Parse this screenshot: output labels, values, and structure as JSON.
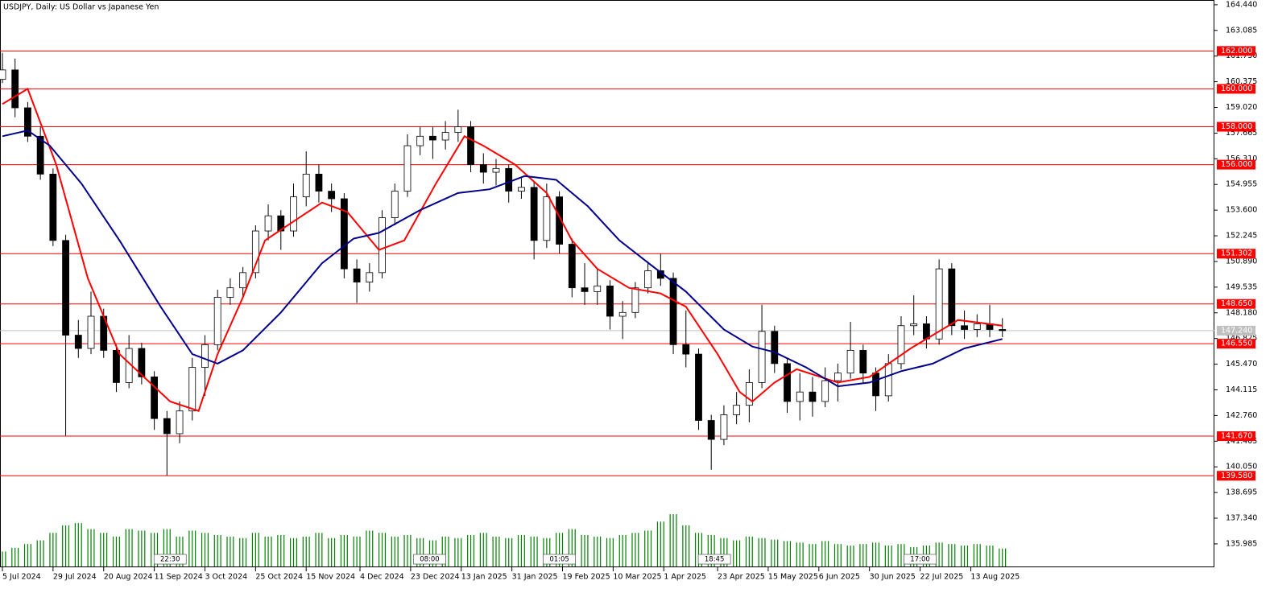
{
  "chart_data": {
    "type": "candlestick",
    "title": "USDJPY, Daily:  US Dollar vs Japanese Yen",
    "xlim": [
      -0.76,
      383
    ],
    "ylim": [
      134.75,
      164.69
    ],
    "yticks": [
      {
        "value": 164.44,
        "label": "164.440"
      },
      {
        "value": 163.085,
        "label": "163.085"
      },
      {
        "value": 161.73,
        "label": "161.730"
      },
      {
        "value": 160.375,
        "label": "160.375"
      },
      {
        "value": 159.02,
        "label": "159.020"
      },
      {
        "value": 157.665,
        "label": "157.665"
      },
      {
        "value": 156.31,
        "label": "156.310"
      },
      {
        "value": 154.955,
        "label": "154.955"
      },
      {
        "value": 153.6,
        "label": "153.600"
      },
      {
        "value": 152.245,
        "label": "152.245"
      },
      {
        "value": 150.89,
        "label": "150.890"
      },
      {
        "value": 149.535,
        "label": "149.535"
      },
      {
        "value": 148.18,
        "label": "148.180"
      },
      {
        "value": 146.825,
        "label": "146.825"
      },
      {
        "value": 145.47,
        "label": "145.470"
      },
      {
        "value": 144.115,
        "label": "144.115"
      },
      {
        "value": 142.76,
        "label": "142.760"
      },
      {
        "value": 141.405,
        "label": "141.405"
      },
      {
        "value": 140.05,
        "label": "140.050"
      },
      {
        "value": 138.695,
        "label": "138.695"
      },
      {
        "value": 137.34,
        "label": "137.340"
      },
      {
        "value": 135.985,
        "label": "135.985"
      }
    ],
    "xticks": [
      {
        "value": 0,
        "label": "5 Jul 2024"
      },
      {
        "value": 16,
        "label": "29 Jul 2024"
      },
      {
        "value": 32,
        "label": "20 Aug 2024"
      },
      {
        "value": 48,
        "label": "11 Sep 2024"
      },
      {
        "value": 64,
        "label": "3 Oct 2024"
      },
      {
        "value": 80,
        "label": "25 Oct 2024"
      },
      {
        "value": 96,
        "label": "15 Nov 2024"
      },
      {
        "value": 113,
        "label": "4 Dec 2024"
      },
      {
        "value": 129,
        "label": "23 Dec 2024"
      },
      {
        "value": 145,
        "label": "13 Jan 2025"
      },
      {
        "value": 161,
        "label": "31 Jan 2025"
      },
      {
        "value": 177,
        "label": "19 Feb 2025"
      },
      {
        "value": 193,
        "label": "10 Mar 2025"
      },
      {
        "value": 209,
        "label": "1 Apr 2025"
      },
      {
        "value": 226,
        "label": "23 Apr 2025"
      },
      {
        "value": 242,
        "label": "15 May 2025"
      },
      {
        "value": 258,
        "label": "6 Jun 2025"
      },
      {
        "value": 274,
        "label": "30 Jun 2025"
      },
      {
        "value": 290,
        "label": "22 Jul 2025"
      },
      {
        "value": 306,
        "label": "13 Aug 2025"
      }
    ],
    "x": [
      0,
      4,
      8,
      12,
      16,
      20,
      24,
      28,
      32,
      36,
      40,
      44,
      48,
      52,
      56,
      60,
      64,
      68,
      72,
      76,
      80,
      84,
      88,
      92,
      96,
      100,
      104,
      108,
      112,
      116,
      120,
      124,
      128,
      132,
      136,
      140,
      144,
      148,
      152,
      156,
      160,
      164,
      168,
      172,
      176,
      180,
      184,
      188,
      192,
      196,
      200,
      204,
      208,
      212,
      216,
      220,
      224,
      228,
      232,
      236,
      240,
      244,
      248,
      252,
      256,
      260,
      264,
      268,
      272,
      276,
      280,
      284,
      288,
      292,
      296,
      300,
      304,
      308,
      312,
      316
    ],
    "open": [
      160.5,
      161.0,
      159.0,
      157.5,
      155.5,
      152.0,
      147.0,
      146.3,
      148.0,
      146.2,
      144.5,
      146.3,
      144.8,
      142.6,
      141.8,
      143.0,
      145.3,
      146.5,
      149.0,
      149.5,
      150.3,
      152.5,
      153.3,
      152.5,
      154.3,
      155.5,
      154.6,
      154.2,
      150.5,
      149.8,
      150.3,
      153.2,
      154.6,
      157.0,
      157.5,
      157.3,
      157.7,
      158.0,
      156.0,
      155.6,
      155.8,
      154.6,
      154.8,
      152.0,
      154.3,
      151.8,
      149.5,
      149.3,
      149.6,
      148.0,
      148.2,
      149.5,
      150.4,
      150.0,
      146.5,
      146.0,
      142.5,
      141.5,
      142.8,
      143.3,
      144.5,
      147.2,
      145.5,
      143.5,
      144.0,
      143.5,
      144.6,
      145.0,
      146.2,
      145.0,
      143.8,
      145.5,
      147.5,
      147.6,
      146.8,
      150.5,
      147.5,
      147.3,
      147.6,
      147.3
    ],
    "high": [
      161.9,
      161.6,
      159.3,
      158.0,
      155.8,
      152.3,
      147.8,
      149.3,
      148.4,
      146.5,
      147.0,
      146.6,
      145.1,
      143.0,
      143.5,
      145.8,
      147.0,
      149.4,
      150.0,
      150.6,
      152.8,
      153.9,
      153.6,
      155.0,
      156.7,
      156.0,
      155.0,
      154.5,
      151.0,
      150.8,
      153.6,
      155.0,
      157.6,
      158.0,
      158.0,
      158.3,
      158.9,
      158.3,
      156.6,
      156.3,
      156.0,
      155.3,
      155.1,
      155.0,
      154.6,
      152.1,
      150.8,
      150.5,
      149.9,
      148.8,
      149.8,
      150.9,
      151.3,
      150.3,
      148.3,
      146.3,
      142.8,
      143.3,
      144.0,
      145.2,
      148.6,
      147.5,
      145.8,
      145.0,
      144.8,
      145.3,
      145.5,
      147.7,
      146.5,
      145.3,
      146.0,
      148.0,
      149.1,
      148.0,
      151.0,
      150.8,
      148.3,
      148.1,
      148.6,
      147.9
    ],
    "low": [
      160.3,
      158.5,
      157.2,
      155.2,
      151.7,
      141.7,
      145.8,
      146.0,
      145.8,
      144.0,
      144.2,
      144.4,
      142.0,
      139.6,
      141.3,
      142.5,
      143.8,
      146.2,
      148.6,
      149.0,
      150.0,
      152.0,
      151.5,
      152.2,
      153.8,
      154.0,
      153.5,
      150.0,
      148.7,
      149.3,
      150.0,
      152.8,
      154.3,
      156.5,
      156.3,
      156.8,
      157.2,
      155.6,
      155.0,
      154.9,
      154.0,
      154.2,
      151.0,
      151.6,
      151.3,
      149.0,
      148.6,
      148.6,
      147.3,
      146.8,
      147.9,
      149.2,
      149.6,
      146.0,
      145.3,
      142.0,
      139.9,
      141.2,
      142.3,
      142.4,
      144.2,
      145.0,
      142.9,
      142.5,
      142.7,
      143.2,
      143.5,
      144.7,
      144.5,
      143.0,
      143.5,
      145.2,
      147.0,
      146.3,
      146.5,
      147.0,
      146.8,
      146.9,
      146.9,
      146.9
    ],
    "close": [
      161.0,
      159.0,
      157.5,
      155.5,
      152.0,
      147.0,
      146.3,
      148.0,
      146.2,
      144.5,
      146.3,
      144.8,
      142.6,
      141.8,
      143.0,
      145.3,
      146.5,
      149.0,
      149.5,
      150.3,
      152.5,
      153.3,
      152.5,
      154.3,
      155.5,
      154.6,
      154.2,
      150.5,
      149.8,
      150.3,
      153.2,
      154.6,
      157.0,
      157.5,
      157.3,
      157.7,
      158.0,
      156.0,
      155.6,
      155.8,
      154.6,
      154.8,
      152.0,
      154.3,
      151.8,
      149.5,
      149.3,
      149.6,
      148.0,
      148.2,
      149.5,
      150.4,
      150.0,
      146.5,
      146.0,
      142.5,
      141.5,
      142.8,
      143.3,
      144.5,
      147.2,
      145.5,
      143.5,
      144.0,
      143.5,
      144.6,
      145.0,
      146.2,
      145.0,
      143.8,
      145.5,
      147.5,
      147.6,
      146.8,
      150.5,
      147.5,
      147.3,
      147.6,
      147.3,
      147.24
    ],
    "volume": [
      20,
      25,
      30,
      35,
      45,
      55,
      58,
      50,
      45,
      40,
      50,
      48,
      45,
      50,
      40,
      48,
      45,
      42,
      40,
      38,
      45,
      40,
      42,
      38,
      40,
      45,
      38,
      42,
      40,
      48,
      45,
      40,
      42,
      38,
      35,
      40,
      38,
      42,
      45,
      40,
      38,
      42,
      40,
      38,
      45,
      50,
      42,
      40,
      38,
      42,
      45,
      48,
      60,
      70,
      55,
      45,
      42,
      38,
      35,
      40,
      38,
      36,
      34,
      32,
      30,
      34,
      30,
      28,
      30,
      32,
      28,
      30,
      26,
      28,
      32,
      30,
      28,
      30,
      28,
      24
    ],
    "volume_color": "#008000",
    "moving_averages": [
      {
        "color": "#ff0000",
        "x": [
          0,
          8,
          17,
          27,
          37,
          53,
          62,
          68,
          76,
          83,
          101,
          109,
          119,
          127,
          137,
          146,
          152,
          162,
          172,
          180,
          188,
          198,
          208,
          216,
          226,
          233,
          237,
          244,
          251,
          264,
          274,
          287,
          294,
          302,
          316
        ],
        "values": [
          159.2,
          160.0,
          156.0,
          150.0,
          146.0,
          143.5,
          143.0,
          146.0,
          149.0,
          152.0,
          154.0,
          153.5,
          151.5,
          152.0,
          155.0,
          157.5,
          157.0,
          156.0,
          154.5,
          152.0,
          150.5,
          149.5,
          149.2,
          148.5,
          146.0,
          144.0,
          143.5,
          144.5,
          145.2,
          144.5,
          144.8,
          146.3,
          147.0,
          147.8,
          147.5
        ]
      },
      {
        "color": "#00008b",
        "x": [
          0,
          8,
          15,
          25,
          37,
          50,
          60,
          68,
          76,
          88,
          101,
          111,
          119,
          132,
          144,
          154,
          165,
          175,
          185,
          195,
          205,
          216,
          228,
          237,
          244,
          254,
          264,
          274,
          284,
          294,
          304,
          316
        ],
        "values": [
          157.5,
          157.8,
          157.0,
          155.0,
          152.0,
          148.5,
          146.0,
          145.5,
          146.2,
          148.2,
          150.8,
          152.1,
          152.4,
          153.6,
          154.5,
          154.7,
          155.4,
          155.2,
          153.8,
          152.0,
          150.7,
          149.3,
          147.3,
          146.4,
          146.1,
          145.3,
          144.3,
          144.5,
          145.1,
          145.5,
          146.3,
          146.8
        ]
      }
    ],
    "levels": [
      {
        "value": 162,
        "label": "162.000"
      },
      {
        "value": 160,
        "label": "160.000"
      },
      {
        "value": 158,
        "label": "158.000"
      },
      {
        "value": 156,
        "label": "156.000"
      },
      {
        "value": 151.302,
        "label": "151.302"
      },
      {
        "value": 148.65,
        "label": "148.650"
      },
      {
        "value": 146.55,
        "label": "146.550"
      },
      {
        "value": 141.67,
        "label": "141.670"
      },
      {
        "value": 139.58,
        "label": "139.580"
      }
    ],
    "level_color": "#ff0000",
    "current_price": {
      "value": 147.24,
      "label": "147.240"
    },
    "current_price_color": "#c0c0c0",
    "session_marks": [
      {
        "x": 53,
        "label": "22:30"
      },
      {
        "x": 135,
        "label": "08:00"
      },
      {
        "x": 176,
        "label": "01:05"
      },
      {
        "x": 225,
        "label": "18:45"
      },
      {
        "x": 290,
        "label": "17:00"
      }
    ]
  }
}
